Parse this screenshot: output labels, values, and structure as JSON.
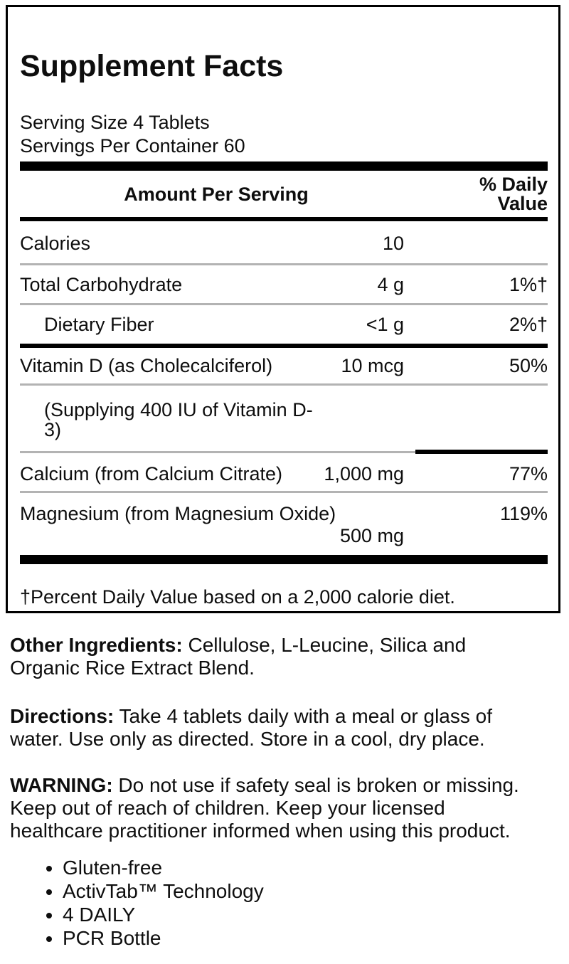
{
  "supplement_facts": {
    "title": "Supplement Facts",
    "serving_size": "Serving Size 4 Tablets",
    "servings_per_container": "Servings Per Container 60",
    "columns": {
      "amount_header": "Amount Per Serving",
      "dv_header": "% Daily Value"
    },
    "rows": [
      {
        "name": "Calories",
        "amount": "10",
        "dv": ""
      },
      {
        "name": "Total Carbohydrate",
        "amount": "4 g",
        "dv": "1%†"
      },
      {
        "name": "Dietary Fiber",
        "amount": "<1 g",
        "dv": "2%†"
      },
      {
        "name": "Vitamin D (as Cholecalciferol)",
        "amount": "10 mcg",
        "dv": "50%"
      },
      {
        "name": "(Supplying 400 IU of Vitamin D-3)",
        "amount": "",
        "dv": ""
      },
      {
        "name": "Calcium (from Calcium Citrate)",
        "amount": "1,000 mg",
        "dv": "77%"
      },
      {
        "name": "Magnesium (from Magnesium Oxide)",
        "amount": "500 mg",
        "dv": "119%"
      }
    ],
    "footnote": "†Percent Daily Value based on a 2,000 calorie diet."
  },
  "sections": {
    "other_ingredients": {
      "label": "Other Ingredients:",
      "text": " Cellulose, L-Leucine, Silica and\nOrganic Rice Extract Blend."
    },
    "directions": {
      "label": "Directions:",
      "text": " Take 4 tablets daily with a meal or glass of\nwater. Use only as directed. Store in a cool, dry place."
    },
    "warning": {
      "label": "WARNING:",
      "text": " Do not use if safety seal is broken or missing.\nKeep out of reach of children. Keep your licensed\nhealthcare practitioner informed when using this product."
    }
  },
  "features": [
    "Gluten-free",
    "ActivTab™ Technology",
    "4 DAILY",
    "PCR Bottle"
  ],
  "colors": {
    "text": "#0e0e0e",
    "rule": "#000000",
    "thin_separator": "#b3b3b3",
    "background": "#ffffff"
  }
}
